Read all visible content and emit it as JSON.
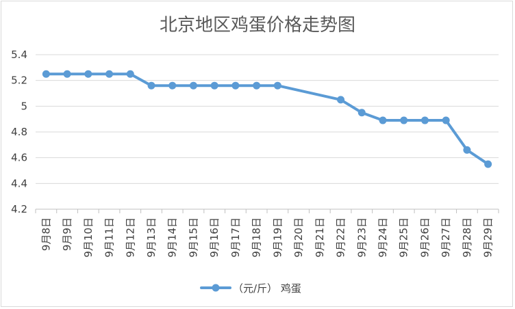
{
  "chart_data": {
    "type": "line",
    "title": "北京地区鸡蛋价格走势图",
    "xlabel": "",
    "ylabel": "",
    "ylim": [
      4.2,
      5.4
    ],
    "yticks": [
      4.2,
      4.4,
      4.6,
      4.8,
      5,
      5.2,
      5.4
    ],
    "grid": true,
    "legend_position": "bottom",
    "categories": [
      "9月8日",
      "9月9日",
      "9月10日",
      "9月11日",
      "9月12日",
      "9月13日",
      "9月14日",
      "9月15日",
      "9月16日",
      "9月17日",
      "9月18日",
      "9月19日",
      "9月20日",
      "9月21日",
      "9月22日",
      "9月23日",
      "9月24日",
      "9月25日",
      "9月26日",
      "9月27日",
      "9月28日",
      "9月29日"
    ],
    "series": [
      {
        "name": "（元/斤） 鸡蛋",
        "color": "#5b9bd5",
        "values": [
          5.25,
          5.25,
          5.25,
          5.25,
          5.25,
          5.16,
          5.16,
          5.16,
          5.16,
          5.16,
          5.16,
          5.16,
          null,
          null,
          5.05,
          4.95,
          4.89,
          4.89,
          4.89,
          4.89,
          4.66,
          4.55
        ]
      }
    ]
  }
}
